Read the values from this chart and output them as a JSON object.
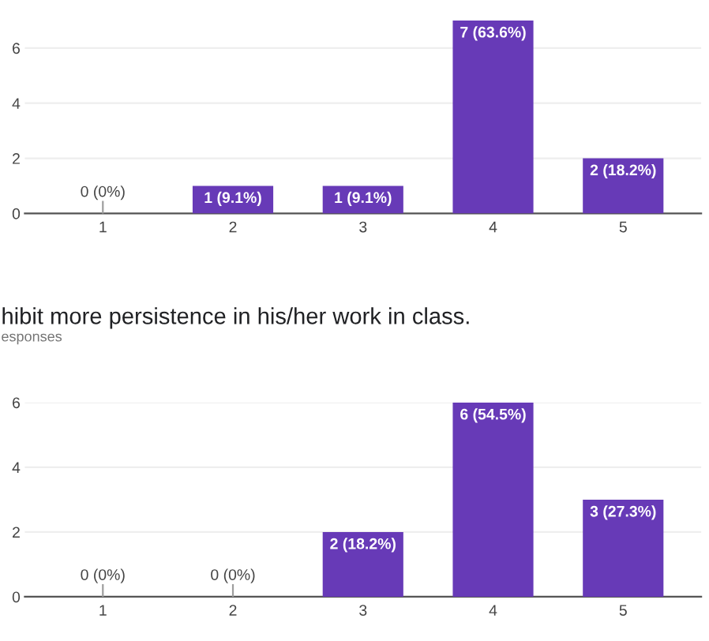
{
  "chart_data": [
    {
      "type": "bar",
      "categories": [
        "1",
        "2",
        "3",
        "4",
        "5"
      ],
      "values": [
        0,
        1,
        1,
        7,
        2
      ],
      "color": "#673ab7",
      "value_labels": [
        "0 (0%)",
        "1 (9.1%)",
        "1 (9.1%)",
        "7 (63.6%)",
        "2 (18.2%)"
      ],
      "ylim": [
        0,
        7
      ],
      "yticks": [
        0,
        2,
        4,
        6
      ],
      "grid": "y"
    },
    {
      "type": "bar",
      "title": "hibit more persistence in his/her work in class.",
      "subtitle": "esponses",
      "categories": [
        "1",
        "2",
        "3",
        "4",
        "5"
      ],
      "values": [
        0,
        0,
        2,
        6,
        3
      ],
      "color": "#673ab7",
      "value_labels": [
        "0 (0%)",
        "0 (0%)",
        "2 (18.2%)",
        "6 (54.5%)",
        "3 (27.3%)"
      ],
      "ylim": [
        0,
        6
      ],
      "yticks": [
        0,
        2,
        4,
        6
      ],
      "grid": "y"
    }
  ]
}
